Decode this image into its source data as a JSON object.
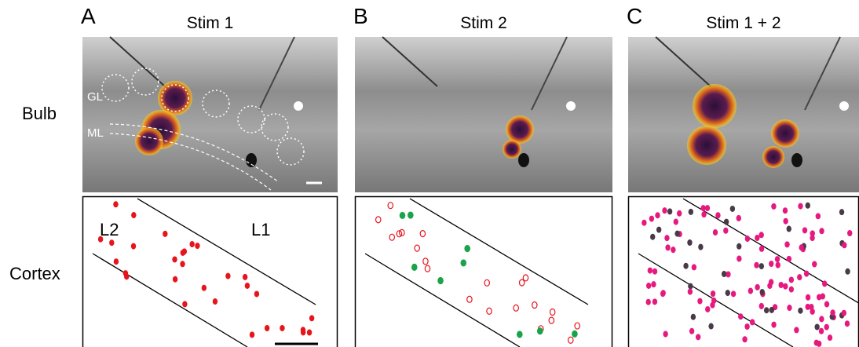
{
  "panels": [
    {
      "letter": "A",
      "title": "Stim 1"
    },
    {
      "letter": "B",
      "title": "Stim 2"
    },
    {
      "letter": "C",
      "title": "Stim 1 + 2"
    }
  ],
  "rows": [
    "Bulb",
    "Cortex"
  ],
  "bulb_labels": [
    "GL",
    "ML"
  ],
  "cortex_labels": [
    "L2",
    "L1"
  ]
}
